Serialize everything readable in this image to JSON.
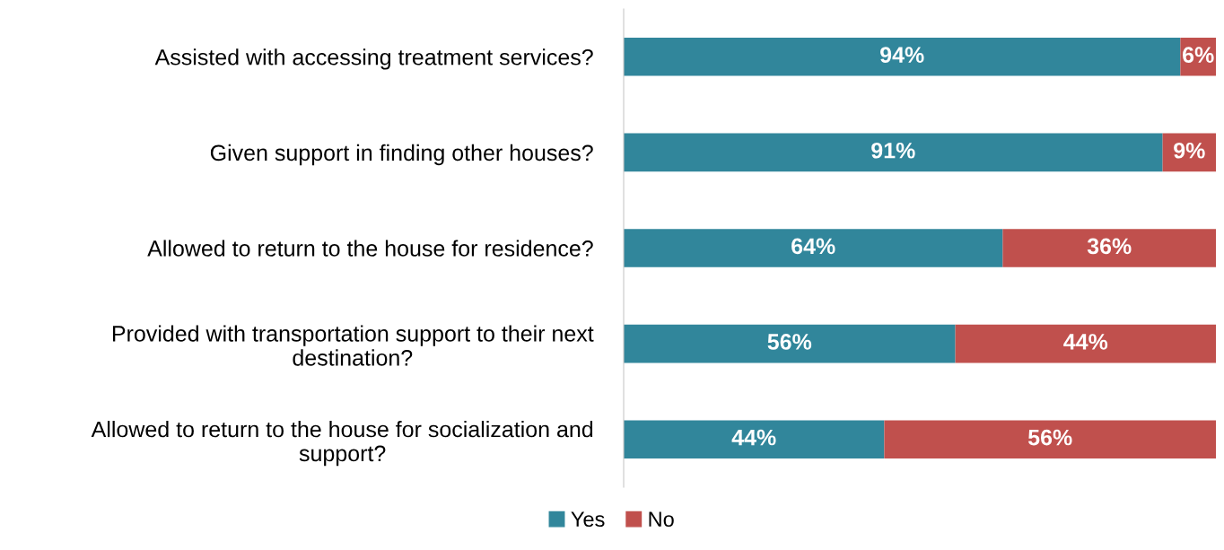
{
  "chart_data": {
    "type": "bar",
    "orientation": "horizontal",
    "stacked": true,
    "categories": [
      "Assisted with accessing treatment services?",
      "Given support in finding other houses?",
      "Allowed to return to the house for residence?",
      "Provided with transportation support to their next destination?",
      "Allowed to return to the house for socialization and support?"
    ],
    "series": [
      {
        "name": "Yes",
        "color": "#31869b",
        "values": [
          94,
          91,
          64,
          56,
          44
        ],
        "value_labels": [
          "94%",
          "91%",
          "64%",
          "56%",
          "44%"
        ]
      },
      {
        "name": "No",
        "color": "#c0504d",
        "values": [
          6,
          9,
          36,
          44,
          56
        ],
        "value_labels": [
          "6%",
          "9%",
          "36%",
          "44%",
          "56%"
        ]
      }
    ],
    "legend": "bottom",
    "grid": false,
    "tick_labels": "y"
  }
}
